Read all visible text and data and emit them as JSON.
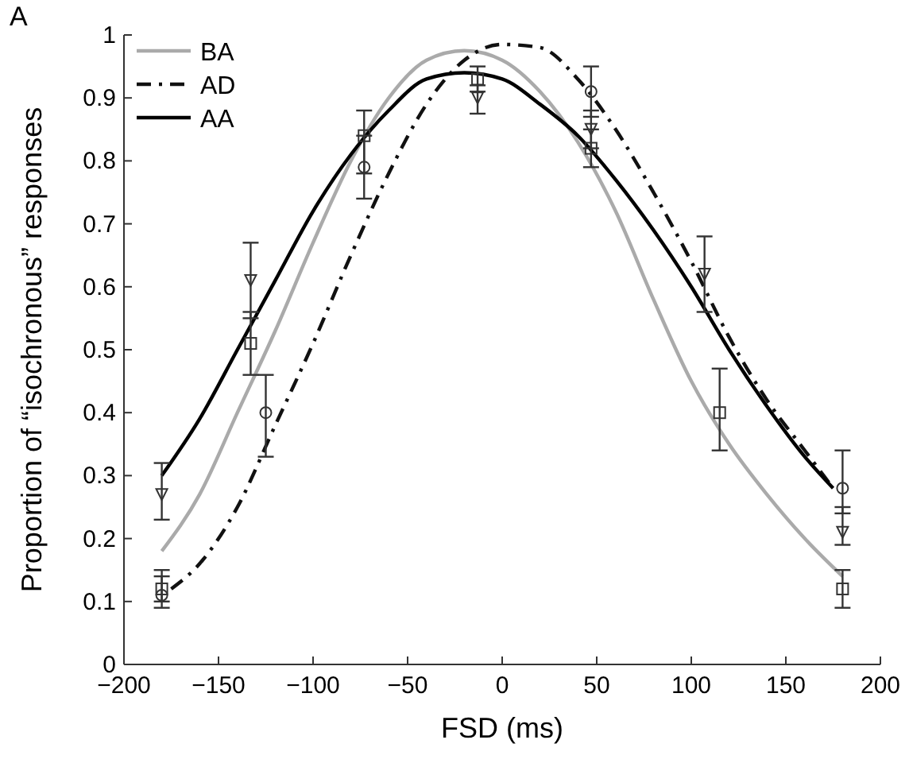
{
  "chart_data": {
    "type": "line",
    "xlabel": "FSD (ms)",
    "ylabel": "Proportion of “isochronous” responses",
    "annotations": [
      "A"
    ],
    "xlim": [
      -200,
      200
    ],
    "xticks": [
      -200,
      -150,
      -100,
      -50,
      0,
      50,
      100,
      150,
      200
    ],
    "ylim": [
      0,
      1
    ],
    "yticks": [
      0,
      0.1,
      0.2,
      0.3,
      0.4,
      0.5,
      0.6,
      0.7,
      0.8,
      0.9,
      1
    ],
    "grid": false,
    "legend": "top left",
    "series": [
      {
        "name": "BA",
        "color": "#aaaaaa",
        "line_style": "solid",
        "marker": "none",
        "x": [
          -180,
          -160,
          -140,
          -120,
          -100,
          -80,
          -60,
          -40,
          -20,
          0,
          20,
          40,
          60,
          80,
          100,
          120,
          140,
          160,
          180
        ],
        "values": [
          0.18,
          0.27,
          0.4,
          0.53,
          0.67,
          0.8,
          0.9,
          0.96,
          0.975,
          0.96,
          0.91,
          0.83,
          0.72,
          0.58,
          0.45,
          0.35,
          0.27,
          0.2,
          0.14
        ]
      },
      {
        "name": "AD",
        "color": "#111111",
        "line_style": "dashdot",
        "marker": "none",
        "x": [
          -175,
          -160,
          -140,
          -120,
          -100,
          -80,
          -60,
          -40,
          -20,
          0,
          20,
          40,
          60,
          80,
          100,
          120,
          140,
          160,
          175
        ],
        "values": [
          0.12,
          0.16,
          0.25,
          0.38,
          0.51,
          0.65,
          0.78,
          0.89,
          0.96,
          0.985,
          0.98,
          0.93,
          0.85,
          0.75,
          0.64,
          0.52,
          0.42,
          0.34,
          0.28
        ]
      },
      {
        "name": "AA",
        "color": "#000000",
        "line_style": "solid",
        "marker": "none",
        "x": [
          -180,
          -160,
          -140,
          -120,
          -100,
          -80,
          -60,
          -40,
          -20,
          0,
          20,
          40,
          60,
          80,
          100,
          120,
          140,
          160,
          175
        ],
        "values": [
          0.3,
          0.39,
          0.5,
          0.61,
          0.72,
          0.81,
          0.88,
          0.93,
          0.94,
          0.93,
          0.89,
          0.84,
          0.77,
          0.69,
          0.6,
          0.5,
          0.41,
          0.33,
          0.28
        ]
      },
      {
        "type": "scatter",
        "color": "#333333",
        "marker": "square",
        "x": [
          -180,
          -133,
          -73,
          -13,
          47,
          115,
          180
        ],
        "values": [
          0.12,
          0.51,
          0.84,
          0.93,
          0.82,
          0.4,
          0.12
        ],
        "errors": [
          [
            0.1,
            0.15
          ],
          [
            0.46,
            0.56
          ],
          [
            0.78,
            0.88
          ],
          [
            0.91,
            0.95
          ],
          [
            0.79,
            0.85
          ],
          [
            0.34,
            0.47
          ],
          [
            0.09,
            0.15
          ]
        ]
      },
      {
        "type": "scatter",
        "color": "#333333",
        "marker": "circle",
        "x": [
          -180,
          -125,
          -73,
          47,
          180
        ],
        "values": [
          0.11,
          0.4,
          0.79,
          0.91,
          0.28
        ],
        "errors": [
          [
            0.09,
            0.14
          ],
          [
            0.33,
            0.46
          ],
          [
            0.74,
            0.84
          ],
          [
            0.87,
            0.95
          ],
          [
            0.24,
            0.34
          ]
        ]
      },
      {
        "type": "scatter",
        "color": "#333333",
        "marker": "triangle",
        "x": [
          -180,
          -133,
          -13,
          47,
          107,
          180
        ],
        "values": [
          0.27,
          0.61,
          0.9,
          0.85,
          0.62,
          0.21
        ],
        "errors": [
          [
            0.23,
            0.32
          ],
          [
            0.55,
            0.67
          ],
          [
            0.875,
            0.92
          ],
          [
            0.82,
            0.88
          ],
          [
            0.56,
            0.68
          ],
          [
            0.19,
            0.25
          ]
        ]
      }
    ]
  }
}
